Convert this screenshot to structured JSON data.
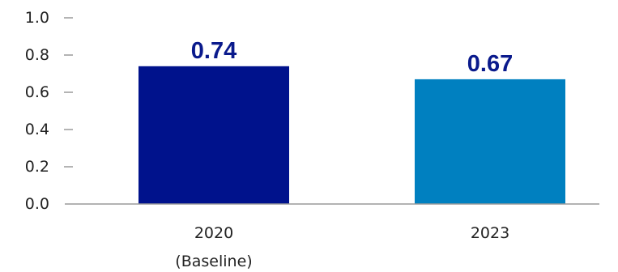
{
  "chart_data": {
    "type": "bar",
    "title": "",
    "xlabel": "",
    "ylabel": "",
    "categories": [
      "2020\n(Baseline)",
      "2023"
    ],
    "category_lines": [
      [
        "2020",
        "(Baseline)"
      ],
      [
        "2023"
      ]
    ],
    "values": [
      0.74,
      0.67
    ],
    "data_labels": [
      "0.74",
      "0.67"
    ],
    "bar_colors": [
      "#00128c",
      "#0080c0"
    ],
    "label_color": "#0a1a8c",
    "ylim": [
      0.0,
      1.0
    ],
    "yticks": [
      0.0,
      0.2,
      0.4,
      0.6,
      0.8,
      1.0
    ],
    "ytick_labels": [
      "0.0",
      "0.2",
      "0.4",
      "0.6",
      "0.8",
      "1.0"
    ],
    "grid": false,
    "legend": "none"
  }
}
